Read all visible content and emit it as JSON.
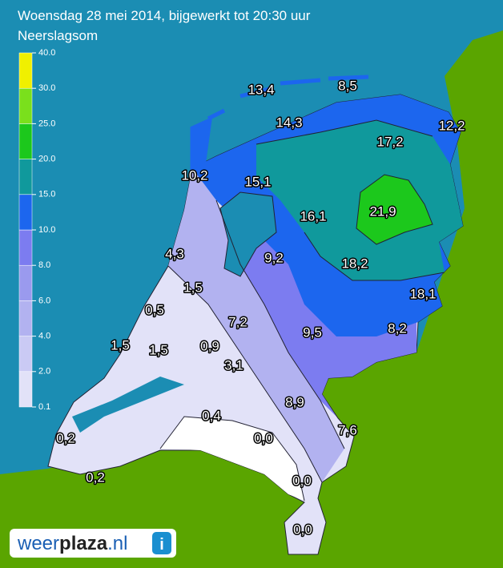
{
  "header": {
    "title": "Woensdag 28 mei 2014, bijgewerkt tot 20:30 uur",
    "subtitle": "Neerslagsom"
  },
  "legend": {
    "ticks": [
      "0.1",
      "2.0",
      "4.0",
      "6.0",
      "8.0",
      "10.0",
      "15.0",
      "20.0",
      "25.0",
      "30.0",
      "40.0"
    ],
    "colors": [
      "#e2e2f8",
      "#cacaf4",
      "#b2b2f0",
      "#9a9aee",
      "#7c7cf0",
      "#1c66ee",
      "#10999c",
      "#1cc81c",
      "#7ae01c",
      "#f0f000"
    ]
  },
  "labels": [
    "13,4",
    "8,5",
    "14,3",
    "12,2",
    "17,2",
    "10,2",
    "15,1",
    "16,1",
    "21,9",
    "4,3",
    "9,2",
    "18,2",
    "1,5",
    "18,1",
    "0,5",
    "7,2",
    "9,5",
    "8,2",
    "1,5",
    "1,5",
    "0,9",
    "3,1",
    "8,9",
    "0,4",
    "7,6",
    "0,2",
    "0,0",
    "0,2",
    "0,0",
    "0,0"
  ],
  "logo": {
    "parts": [
      "weer",
      "plaza",
      ".nl"
    ]
  }
}
